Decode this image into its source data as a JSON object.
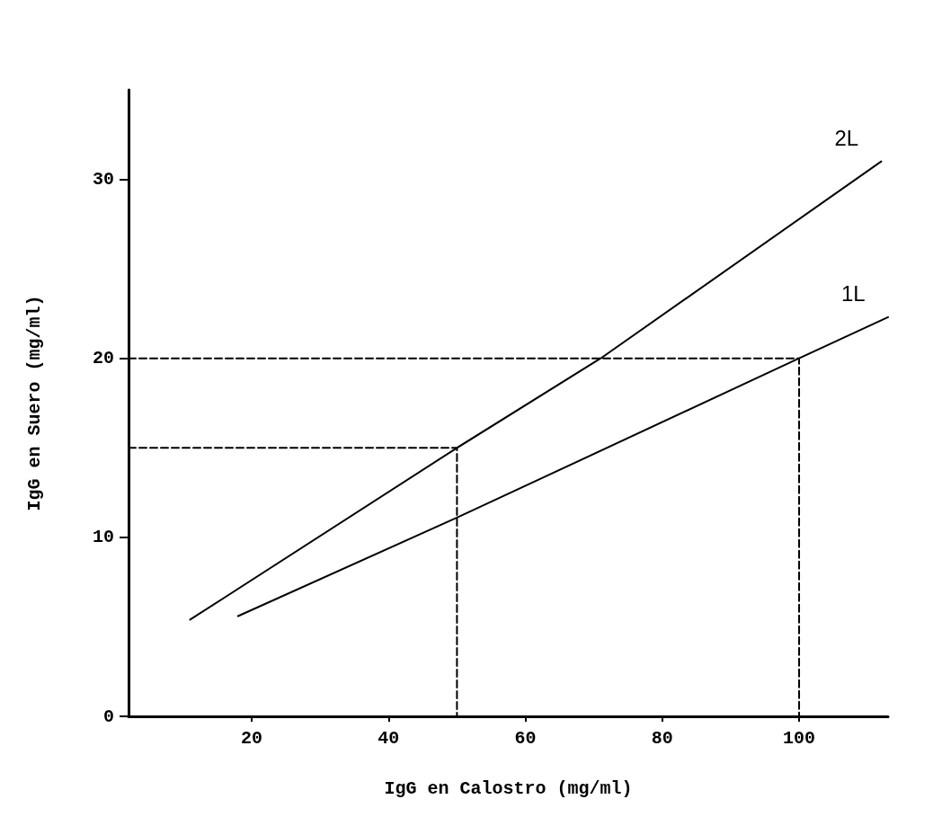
{
  "chart_data": {
    "type": "line",
    "xlabel": "IgG en Calostro (mg/ml)",
    "ylabel": "IgG en Suero (mg/ml)",
    "xlim": [
      2,
      113
    ],
    "ylim": [
      0,
      35
    ],
    "xticks": [
      20,
      40,
      60,
      80,
      100
    ],
    "yticks": [
      0,
      10,
      20,
      30
    ],
    "grid": false,
    "legend": false,
    "marker": "none",
    "series": [
      {
        "name": "2L",
        "color": "#000000",
        "x": [
          11,
          50,
          71,
          112
        ],
        "values": [
          5.4,
          15,
          20,
          31
        ]
      },
      {
        "name": "1L",
        "color": "#000000",
        "x": [
          18,
          50,
          100,
          113
        ],
        "values": [
          5.6,
          11.1,
          20,
          22.3
        ]
      },
      {
        "color": "#000000",
        "line_style": "dashed",
        "x": [
          2,
          100,
          100
        ],
        "values": [
          20,
          20,
          0
        ]
      },
      {
        "color": "#000000",
        "line_style": "dashed",
        "x": [
          2,
          50,
          50
        ],
        "values": [
          15,
          15,
          0
        ]
      }
    ]
  }
}
